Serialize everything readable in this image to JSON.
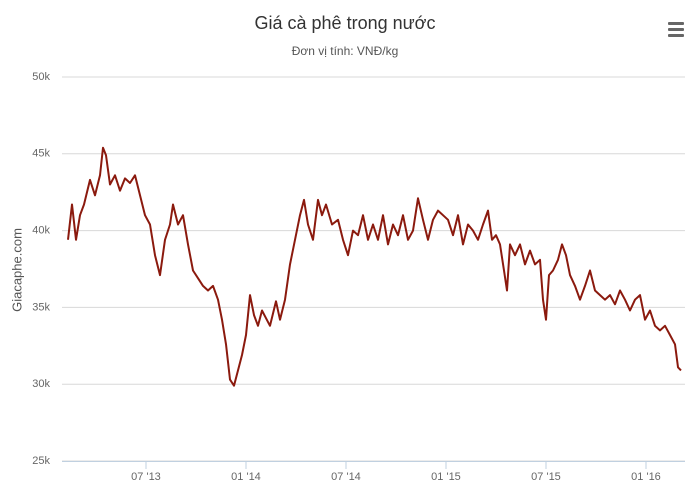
{
  "chart_data": {
    "type": "line",
    "title": "Giá cà phê trong nước",
    "subtitle": "Đơn vị tính: VNĐ/kg",
    "y_label": "Giacaphe.com",
    "x": [
      1.32,
      1.56,
      1.8,
      2.04,
      2.28,
      2.64,
      2.94,
      3.24,
      3.42,
      3.6,
      3.84,
      4.14,
      4.44,
      4.74,
      5.04,
      5.34,
      5.64,
      5.94,
      6.24,
      6.54,
      6.84,
      7.14,
      7.44,
      7.62,
      7.92,
      8.22,
      8.52,
      8.82,
      9.12,
      9.42,
      9.72,
      10.02,
      10.32,
      10.56,
      10.8,
      11.04,
      11.28,
      11.52,
      11.76,
      12,
      12.24,
      12.48,
      12.72,
      12.96,
      13.2,
      13.44,
      13.8,
      14.04,
      14.34,
      14.64,
      14.94,
      15.24,
      15.48,
      15.72,
      16.02,
      16.32,
      16.56,
      16.8,
      17.16,
      17.52,
      17.82,
      18.12,
      18.42,
      18.72,
      19.02,
      19.32,
      19.62,
      19.92,
      20.22,
      20.52,
      20.82,
      21.12,
      21.42,
      21.72,
      22.02,
      22.32,
      22.62,
      22.92,
      23.22,
      23.52,
      23.82,
      24.12,
      24.42,
      24.72,
      25.02,
      25.32,
      25.62,
      25.92,
      26.22,
      26.52,
      26.76,
      27,
      27.24,
      27.48,
      27.66,
      27.84,
      28.14,
      28.44,
      28.74,
      29.04,
      29.34,
      29.64,
      29.82,
      30,
      30.18,
      30.42,
      30.72,
      30.96,
      31.2,
      31.44,
      31.74,
      32.04,
      32.34,
      32.64,
      32.94,
      33.24,
      33.54,
      33.84,
      34.14,
      34.44,
      34.74,
      35.04,
      35.34,
      35.64,
      35.94,
      36.24,
      36.54,
      36.84,
      37.14,
      37.44,
      37.74,
      37.92,
      38.1
    ],
    "series": [
      {
        "name": "Giá cà phê",
        "color": "#8b1a0e",
        "values": [
          39400,
          41700,
          39400,
          41000,
          41700,
          43300,
          42300,
          43600,
          45400,
          44900,
          43000,
          43600,
          42600,
          43400,
          43100,
          43600,
          42300,
          41000,
          40400,
          38400,
          37100,
          39400,
          40400,
          41700,
          40400,
          41000,
          39100,
          37400,
          36900,
          36400,
          36100,
          36400,
          35500,
          34200,
          32600,
          30300,
          29900,
          30900,
          31900,
          33200,
          35800,
          34500,
          33800,
          34800,
          34300,
          33800,
          35400,
          34200,
          35500,
          37800,
          39400,
          41000,
          42000,
          40400,
          39400,
          42000,
          41000,
          41700,
          40400,
          40700,
          39400,
          38400,
          40000,
          39700,
          41000,
          39400,
          40400,
          39400,
          41000,
          39100,
          40400,
          39700,
          41000,
          39400,
          40000,
          42100,
          40700,
          39400,
          40700,
          41300,
          41000,
          40700,
          39700,
          41000,
          39100,
          40400,
          40000,
          39400,
          40400,
          41300,
          39400,
          39700,
          39100,
          37400,
          36100,
          39100,
          38400,
          39100,
          37800,
          38700,
          37800,
          38100,
          35500,
          34200,
          37100,
          37400,
          38100,
          39100,
          38400,
          37100,
          36400,
          35500,
          36400,
          37400,
          36100,
          35800,
          35500,
          35800,
          35200,
          36100,
          35500,
          34800,
          35500,
          35800,
          34200,
          34800,
          33800,
          33500,
          33800,
          33200,
          32600,
          31100,
          30900
        ]
      }
    ],
    "xlim": [
      0.96,
      38.34
    ],
    "xticks": [
      {
        "value": 6,
        "label": "07 '13"
      },
      {
        "value": 12,
        "label": "01 '14"
      },
      {
        "value": 18,
        "label": "07 '14"
      },
      {
        "value": 24,
        "label": "01 '15"
      },
      {
        "value": 30,
        "label": "07 '15"
      },
      {
        "value": 36,
        "label": "01 '16"
      }
    ],
    "ylim": [
      25000,
      50000
    ],
    "yticks": [
      {
        "value": 25000,
        "label": "25k"
      },
      {
        "value": 30000,
        "label": "30k"
      },
      {
        "value": 35000,
        "label": "35k"
      },
      {
        "value": 40000,
        "label": "40k"
      },
      {
        "value": 45000,
        "label": "45k"
      },
      {
        "value": 50000,
        "label": "50k"
      }
    ],
    "grid": true
  }
}
